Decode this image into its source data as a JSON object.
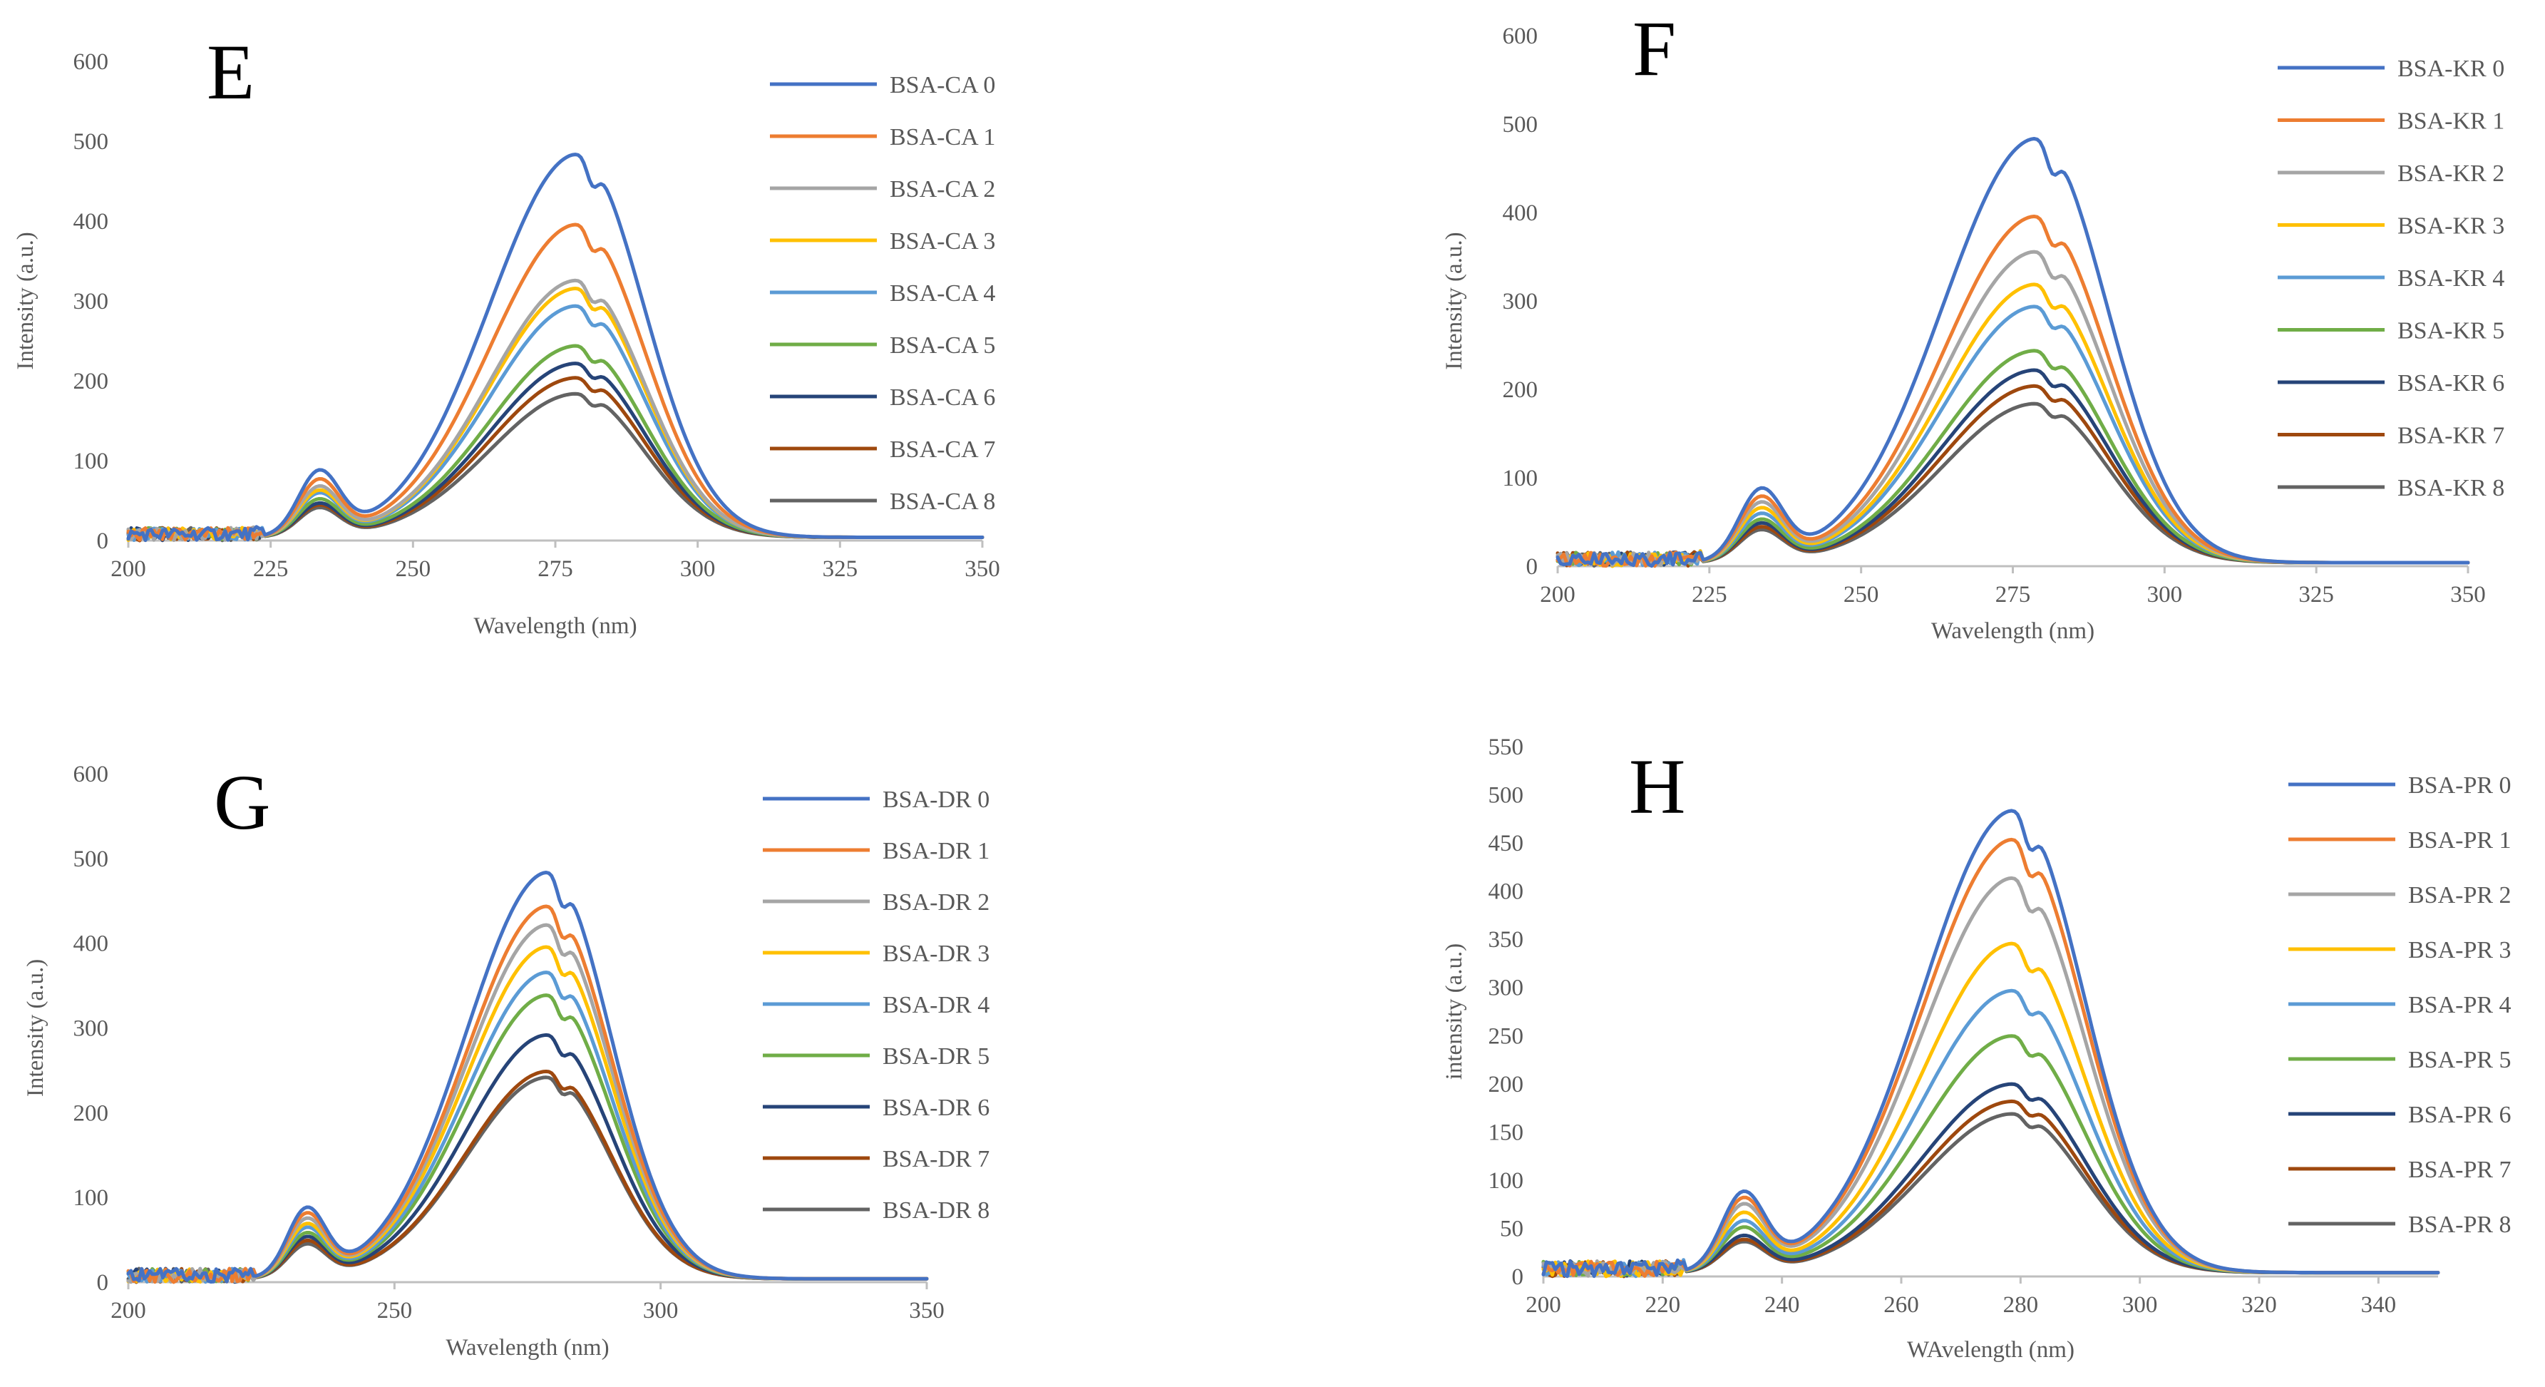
{
  "palette": [
    "#4472C4",
    "#ED7D31",
    "#A5A5A5",
    "#FFC000",
    "#5B9BD5",
    "#70AD47",
    "#264478",
    "#9E480E",
    "#636363"
  ],
  "chart_data": [
    {
      "type": "line",
      "panel_label": "E",
      "xlabel": "Wavelength (nm)",
      "ylabel": "Intensity (a.u.)",
      "xlim": [
        200,
        350
      ],
      "ylim": [
        0,
        600
      ],
      "xticks": [
        200,
        225,
        250,
        275,
        300,
        325,
        350
      ],
      "yticks": [
        0,
        100,
        200,
        300,
        400,
        500,
        600
      ],
      "legend_position": "top-right",
      "series": [
        {
          "name": "BSA-CA 0",
          "peak": 480,
          "shoulder": 78
        },
        {
          "name": "BSA-CA 1",
          "peak": 392,
          "shoulder": 68
        },
        {
          "name": "BSA-CA 2",
          "peak": 322,
          "shoulder": 60
        },
        {
          "name": "BSA-CA 3",
          "peak": 312,
          "shoulder": 55
        },
        {
          "name": "BSA-CA 4",
          "peak": 290,
          "shoulder": 52
        },
        {
          "name": "BSA-CA 5",
          "peak": 240,
          "shoulder": 45
        },
        {
          "name": "BSA-CA 6",
          "peak": 218,
          "shoulder": 40
        },
        {
          "name": "BSA-CA 7",
          "peak": 200,
          "shoulder": 38
        },
        {
          "name": "BSA-CA 8",
          "peak": 180,
          "shoulder": 35
        }
      ]
    },
    {
      "type": "line",
      "panel_label": "F",
      "xlabel": "Wavelength (nm)",
      "ylabel": "Intensity (a.u.)",
      "xlim": [
        200,
        350
      ],
      "ylim": [
        0,
        600
      ],
      "xticks": [
        200,
        225,
        250,
        275,
        300,
        325,
        350
      ],
      "yticks": [
        0,
        100,
        200,
        300,
        400,
        500,
        600
      ],
      "legend_position": "top-right",
      "series": [
        {
          "name": "BSA-KR 0",
          "peak": 480,
          "shoulder": 78
        },
        {
          "name": "BSA-KR 1",
          "peak": 392,
          "shoulder": 70
        },
        {
          "name": "BSA-KR 2",
          "peak": 352,
          "shoulder": 64
        },
        {
          "name": "BSA-KR 3",
          "peak": 315,
          "shoulder": 58
        },
        {
          "name": "BSA-KR 4",
          "peak": 290,
          "shoulder": 52
        },
        {
          "name": "BSA-KR 5",
          "peak": 240,
          "shoulder": 46
        },
        {
          "name": "BSA-KR 6",
          "peak": 218,
          "shoulder": 42
        },
        {
          "name": "BSA-KR 7",
          "peak": 200,
          "shoulder": 38
        },
        {
          "name": "BSA-KR 8",
          "peak": 180,
          "shoulder": 35
        }
      ]
    },
    {
      "type": "line",
      "panel_label": "G",
      "xlabel": "Wavelength (nm)",
      "ylabel": "Intensity (a.u.)",
      "xlim": [
        200,
        350
      ],
      "ylim": [
        0,
        600
      ],
      "xticks": [
        200,
        250,
        300,
        350
      ],
      "yticks": [
        0,
        100,
        200,
        300,
        400,
        500,
        600
      ],
      "legend_position": "top-right",
      "series": [
        {
          "name": "BSA-DR 0",
          "peak": 480,
          "shoulder": 78
        },
        {
          "name": "BSA-DR 1",
          "peak": 440,
          "shoulder": 72
        },
        {
          "name": "BSA-DR 2",
          "peak": 418,
          "shoulder": 66
        },
        {
          "name": "BSA-DR 3",
          "peak": 392,
          "shoulder": 60
        },
        {
          "name": "BSA-DR 4",
          "peak": 362,
          "shoulder": 56
        },
        {
          "name": "BSA-DR 5",
          "peak": 335,
          "shoulder": 50
        },
        {
          "name": "BSA-DR 6",
          "peak": 288,
          "shoulder": 46
        },
        {
          "name": "BSA-DR 7",
          "peak": 245,
          "shoulder": 42
        },
        {
          "name": "BSA-DR 8",
          "peak": 238,
          "shoulder": 38
        }
      ]
    },
    {
      "type": "line",
      "panel_label": "H",
      "xlabel": "WAvelength (nm)",
      "ylabel": "intensity (a.u.)",
      "xlim": [
        200,
        350
      ],
      "ylim": [
        0,
        550
      ],
      "xticks": [
        200,
        220,
        240,
        260,
        280,
        300,
        320,
        340
      ],
      "yticks": [
        0,
        50,
        100,
        150,
        200,
        250,
        300,
        350,
        400,
        450,
        500,
        550
      ],
      "legend_position": "top-right",
      "series": [
        {
          "name": "BSA-PR 0",
          "peak": 480,
          "shoulder": 78
        },
        {
          "name": "BSA-PR 1",
          "peak": 450,
          "shoulder": 72
        },
        {
          "name": "BSA-PR 2",
          "peak": 410,
          "shoulder": 66
        },
        {
          "name": "BSA-PR 3",
          "peak": 342,
          "shoulder": 58
        },
        {
          "name": "BSA-PR 4",
          "peak": 293,
          "shoulder": 50
        },
        {
          "name": "BSA-PR 5",
          "peak": 246,
          "shoulder": 44
        },
        {
          "name": "BSA-PR 6",
          "peak": 196,
          "shoulder": 36
        },
        {
          "name": "BSA-PR 7",
          "peak": 178,
          "shoulder": 32
        },
        {
          "name": "BSA-PR 8",
          "peak": 165,
          "shoulder": 30
        }
      ]
    }
  ]
}
